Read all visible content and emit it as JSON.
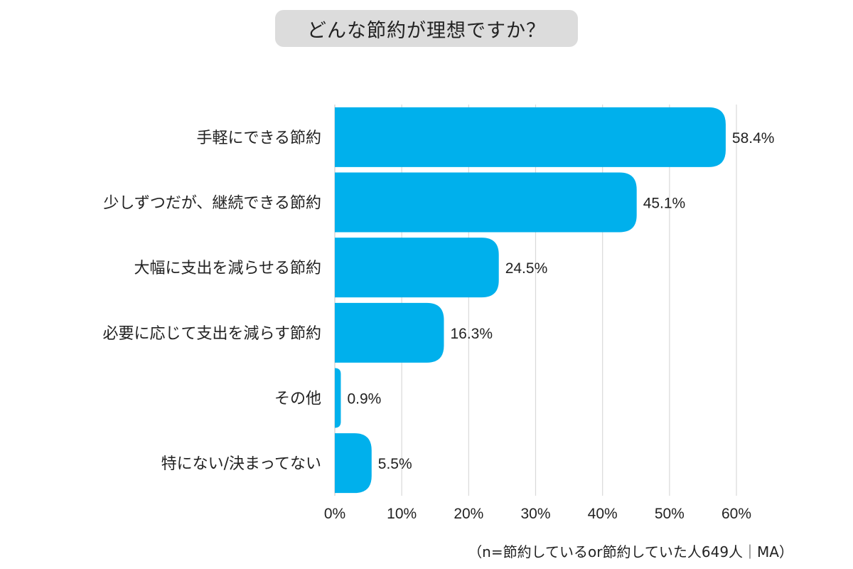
{
  "chart_data": {
    "type": "bar",
    "orientation": "horizontal",
    "title": "どんな節約が理想ですか？",
    "categories": [
      "手軽にできる節約",
      "少しずつだが、継続できる節約",
      "大幅に支出を減らせる節約",
      "必要に応じて支出を減らす節約",
      "その他",
      "特にない/決まってない"
    ],
    "values": [
      58.4,
      45.1,
      24.5,
      16.3,
      0.9,
      5.5
    ],
    "value_labels": [
      "58.4%",
      "45.1%",
      "24.5%",
      "16.3%",
      "0.9%",
      "5.5%"
    ],
    "xlim": [
      0,
      60
    ],
    "xticks": [
      0,
      10,
      20,
      30,
      40,
      50,
      60
    ],
    "xtick_labels": [
      "0%",
      "10%",
      "20%",
      "30%",
      "40%",
      "50%",
      "60%"
    ],
    "grid": true,
    "bar_color": "#00b0ec",
    "note": "（n=節約しているor節約していた人649人｜MA）"
  }
}
